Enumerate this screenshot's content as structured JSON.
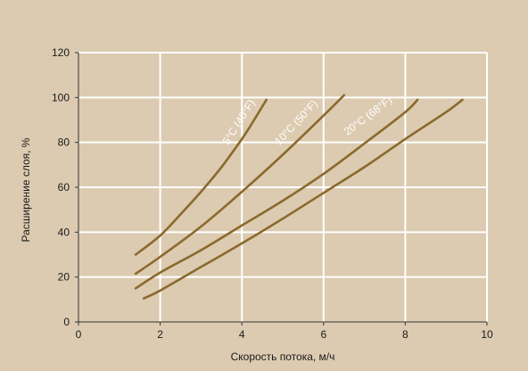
{
  "colors": {
    "background": "#dccbb1",
    "grid": "#ffffff",
    "axis": "#333333",
    "line": "#8a6a2c"
  },
  "chart_data": {
    "type": "line",
    "xlabel": "Скорость потока, м/ч",
    "ylabel": "Расширение слоя, %",
    "xlim": [
      0,
      10
    ],
    "ylim": [
      0,
      120
    ],
    "xticks": [
      0,
      2,
      4,
      6,
      8,
      10
    ],
    "yticks": [
      0,
      20,
      40,
      60,
      80,
      100,
      120
    ],
    "grid": true,
    "series": [
      {
        "name": "5°C (40°F)",
        "x": [
          1.4,
          2.0,
          2.5,
          3.0,
          3.5,
          4.0,
          4.3,
          4.6
        ],
        "y": [
          30,
          38.5,
          48,
          58,
          69,
          81.5,
          90,
          99
        ]
      },
      {
        "name": "10°C (50°F)",
        "x": [
          1.4,
          2.0,
          3.0,
          4.0,
          5.0,
          6.0,
          6.5
        ],
        "y": [
          21.5,
          29,
          42.5,
          58,
          74.5,
          92,
          101
        ]
      },
      {
        "name": "20°C (68°F)",
        "x": [
          1.4,
          2.0,
          3.0,
          4.0,
          5.0,
          6.0,
          7.0,
          8.0,
          8.3
        ],
        "y": [
          15,
          22,
          32,
          43,
          54,
          66,
          79.5,
          93.5,
          99
        ]
      },
      {
        "name": "",
        "x": [
          1.6,
          2.0,
          3.0,
          4.0,
          5.0,
          6.0,
          7.0,
          8.0,
          9.0,
          9.4
        ],
        "y": [
          10.5,
          14,
          24.5,
          35,
          46,
          57.5,
          69,
          81.5,
          93.5,
          99
        ]
      }
    ]
  }
}
